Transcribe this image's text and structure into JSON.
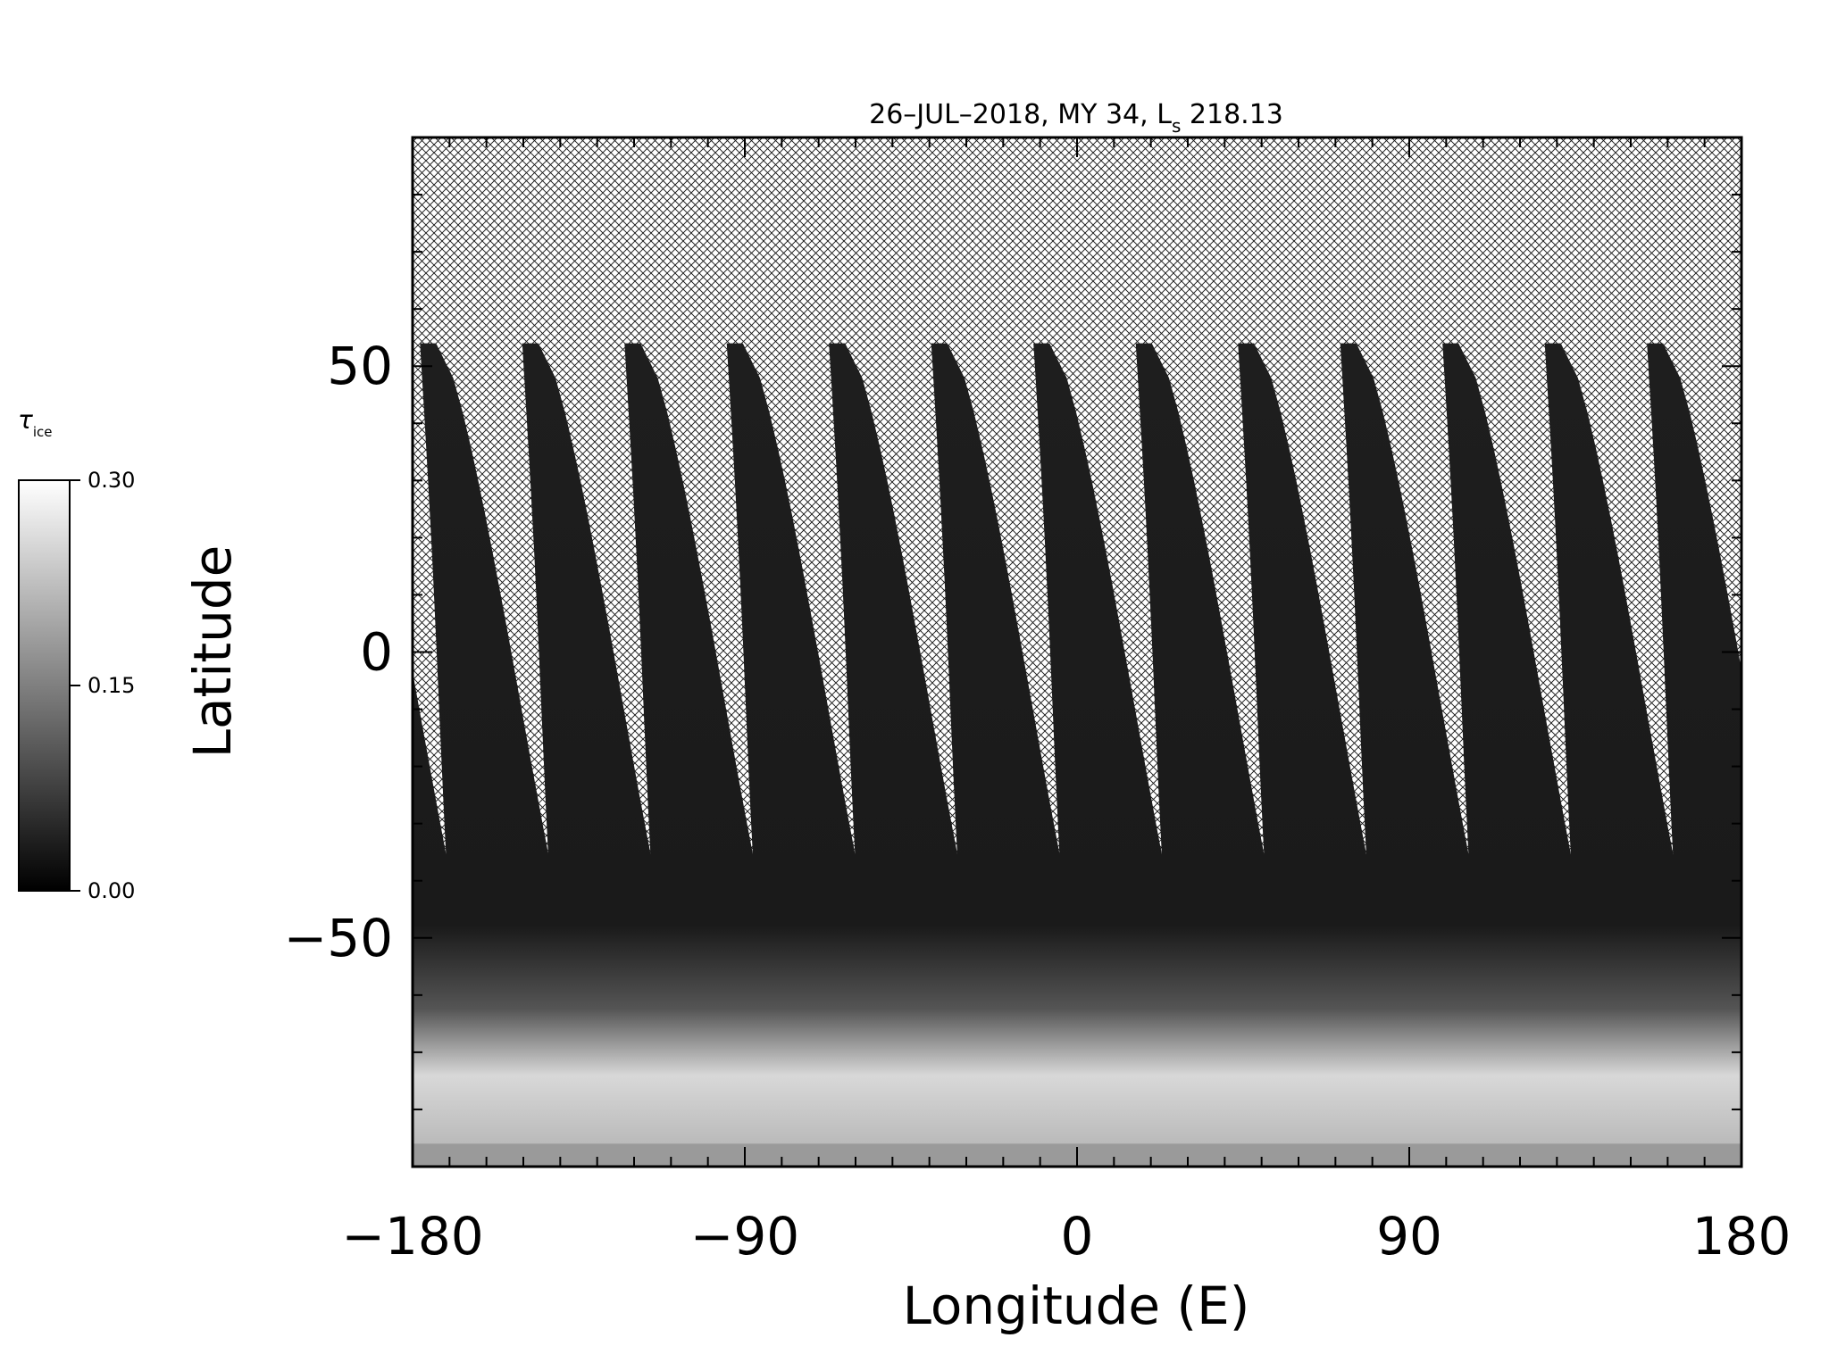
{
  "chart_data": {
    "type": "heatmap",
    "title": {
      "main": "26–JUL–2018, MY 34,  L",
      "subscript": "s",
      "value": " 218.13"
    },
    "xlabel": "Longitude (E)",
    "ylabel": "Latitude",
    "xlim": [
      -180,
      180
    ],
    "ylim": [
      -90,
      90
    ],
    "x_ticks": [
      -180,
      -90,
      0,
      90,
      180
    ],
    "x_tick_labels": [
      "−180",
      "−90",
      "0",
      "90",
      "180"
    ],
    "y_ticks": [
      -50,
      0,
      50
    ],
    "y_tick_labels": [
      "−50",
      "0",
      "50"
    ],
    "x_minor_step": 10,
    "y_minor_step": 10,
    "no_data_pattern": "crosshatch",
    "grid": false,
    "legend": "none",
    "colorbar": {
      "label_symbol": "τ",
      "label_subscript": "ice",
      "placement": "left",
      "colormap": "grayscale",
      "range": [
        0,
        0.3
      ],
      "ticks": [
        0,
        0.15,
        0.3
      ],
      "tick_labels": [
        "0.00",
        "0.15",
        "0.30"
      ]
    },
    "swaths": {
      "count": 13,
      "spacing_deg": 27.7,
      "first_top_lon": -178,
      "top_lat": 54,
      "bottom_lat": -90,
      "south_polar_ice_lat": -60
    }
  }
}
